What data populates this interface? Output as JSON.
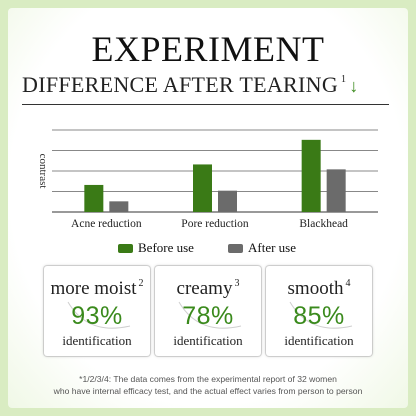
{
  "title": "EXPERIMENT",
  "subtitle": "DIFFERENCE AFTER TEARING",
  "subtitle_sup": "1",
  "subtitle_arrow": "↓",
  "colors": {
    "before": "#3a7a16",
    "after": "#6b6b6b",
    "accent": "#3a8a1c"
  },
  "chart_data": {
    "type": "bar",
    "title": "",
    "ylabel": "contrast",
    "xlabel": "",
    "categories": [
      "Acne reduction",
      "Pore reduction",
      "Blackhead"
    ],
    "series": [
      {
        "name": "Before use",
        "values": [
          33,
          58,
          88
        ]
      },
      {
        "name": "After use",
        "values": [
          13,
          26,
          52
        ]
      }
    ],
    "ylim": [
      0,
      100
    ],
    "grid": true,
    "legend": "bottom"
  },
  "legend": {
    "before": "Before use",
    "after": "After use"
  },
  "cards": [
    {
      "label": "more moist",
      "sup": "2",
      "value": "93%",
      "sub": "identification"
    },
    {
      "label": "creamy",
      "sup": "3",
      "value": "78%",
      "sub": "identification"
    },
    {
      "label": "smooth",
      "sup": "4",
      "value": "85%",
      "sub": "identification"
    }
  ],
  "footnote": {
    "line1": "*1/2/3/4:  The data comes from the experimental report of 32 women",
    "line2": "who have internal efficacy test, and the actual effect varies from person to person"
  }
}
